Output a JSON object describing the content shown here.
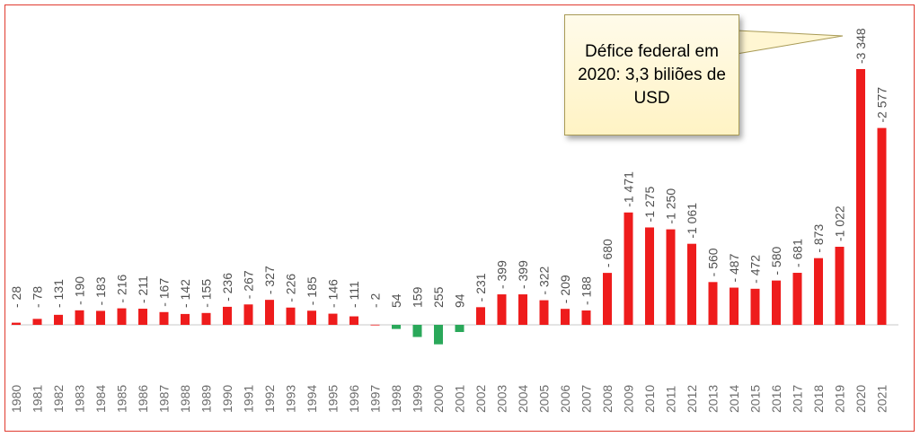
{
  "chart_data": {
    "type": "bar",
    "title": "",
    "xlabel": "",
    "ylabel": "",
    "grid": false,
    "categories": [
      "1980",
      "1981",
      "1982",
      "1983",
      "1984",
      "1985",
      "1986",
      "1987",
      "1988",
      "1989",
      "1990",
      "1991",
      "1992",
      "1993",
      "1994",
      "1995",
      "1996",
      "1997",
      "1998",
      "1999",
      "2000",
      "2001",
      "2002",
      "2003",
      "2004",
      "2005",
      "2006",
      "2007",
      "2008",
      "2009",
      "2010",
      "2011",
      "2012",
      "2013",
      "2014",
      "2015",
      "2016",
      "2017",
      "2018",
      "2019",
      "2020",
      "2021"
    ],
    "values": [
      -28,
      -78,
      -131,
      -190,
      -183,
      -216,
      -211,
      -167,
      -142,
      -155,
      -236,
      -267,
      -327,
      -226,
      -185,
      -146,
      -111,
      -2,
      54,
      159,
      255,
      94,
      -231,
      -399,
      -399,
      -322,
      -209,
      -188,
      -680,
      -1471,
      -1275,
      -1250,
      -1061,
      -560,
      -487,
      -472,
      -580,
      -681,
      -873,
      -1022,
      -3348,
      -2577
    ],
    "data_labels": [
      "- 28",
      "- 78",
      "- 131",
      "- 190",
      "- 183",
      "- 216",
      "- 211",
      "- 167",
      "- 142",
      "- 155",
      "- 236",
      "- 267",
      "- 327",
      "- 226",
      "- 185",
      "- 146",
      "- 111",
      "- 2",
      "54",
      "159",
      "255",
      "94",
      "- 231",
      "- 399",
      "- 399",
      "- 322",
      "- 209",
      "- 188",
      "- 680",
      "-1 471",
      "-1 275",
      "-1 250",
      "-1 061",
      "- 560",
      "- 487",
      "- 472",
      "- 580",
      "- 681",
      "- 873",
      "-1 022",
      "-3 348",
      "-2 577"
    ],
    "deficit_color": "#ee1c1c",
    "surplus_color": "#2aa85a",
    "annotation": "Défice federal em 2020: 3,3 biliões de USD"
  }
}
